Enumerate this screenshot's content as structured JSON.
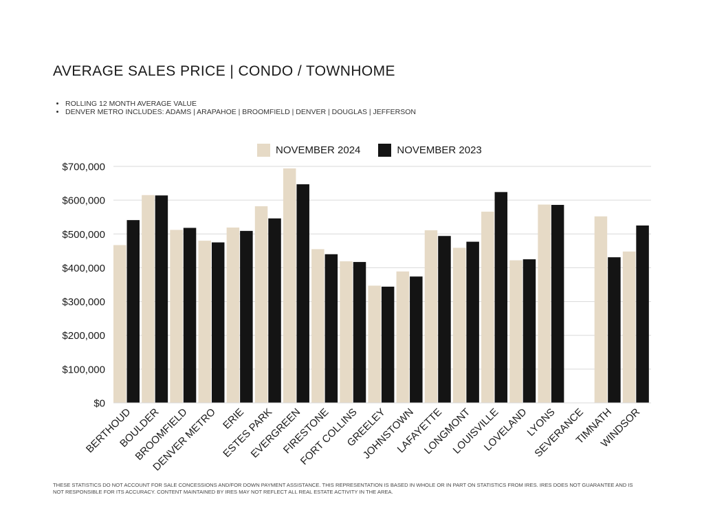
{
  "header": {
    "title": "AVERAGE SALES PRICE | CONDO / TOWNHOME",
    "notes": [
      "ROLLING 12 MONTH AVERAGE VALUE",
      "DENVER METRO INCLUDES: ADAMS | ARAPAHOE | BROOMFIELD | DENVER | DOUGLAS | JEFFERSON"
    ]
  },
  "footer": {
    "disclaimer": "THESE STATISTICS DO NOT ACCOUNT FOR SALE CONCESSIONS AND/FOR DOWN PAYMENT ASSISTANCE. THIS REPRESENTATION IS BASED IN WHOLE OR IN PART ON STATISTICS FROM IRES. IRES DOES NOT GUARANTEE AND IS NOT RESPONSIBLE FOR ITS ACCURACY. CONTENT MAINTAINED BY IRES MAY NOT REFLECT ALL REAL ESTATE ACTIVITY IN THE AREA."
  },
  "chart_data": {
    "type": "bar",
    "title": "AVERAGE SALES PRICE | CONDO / TOWNHOME",
    "xlabel": "",
    "ylabel": "",
    "ylim": [
      0,
      700000
    ],
    "yticks": [
      0,
      100000,
      200000,
      300000,
      400000,
      500000,
      600000,
      700000
    ],
    "ytick_labels": [
      "$0",
      "$100,000",
      "$200,000",
      "$300,000",
      "$400,000",
      "$500,000",
      "$600,000",
      "$700,000"
    ],
    "grid": true,
    "legend_position": "top-center",
    "categories": [
      "BERTHOUD",
      "BOULDER",
      "BROOMFIELD",
      "DENVER METRO",
      "ERIE",
      "ESTES PARK",
      "EVERGREEN",
      "FIRESTONE",
      "FORT COLLINS",
      "GREELEY",
      "JOHNSTOWN",
      "LAFAYETTE",
      "LONGMONT",
      "LOUISVILLE",
      "LOVELAND",
      "LYONS",
      "SEVERANCE",
      "TIMNATH",
      "WINDSOR"
    ],
    "series": [
      {
        "name": "NOVEMBER 2024",
        "color": "#e6dac6",
        "values": [
          467000,
          615000,
          512000,
          480000,
          519000,
          582000,
          694000,
          455000,
          419000,
          347000,
          389000,
          511000,
          459000,
          566000,
          422000,
          587000,
          0,
          552000,
          448000
        ]
      },
      {
        "name": "NOVEMBER 2023",
        "color": "#141414",
        "values": [
          541000,
          614000,
          518000,
          475000,
          509000,
          546000,
          647000,
          440000,
          417000,
          344000,
          374000,
          494000,
          477000,
          624000,
          425000,
          586000,
          0,
          431000,
          525000
        ]
      }
    ]
  }
}
